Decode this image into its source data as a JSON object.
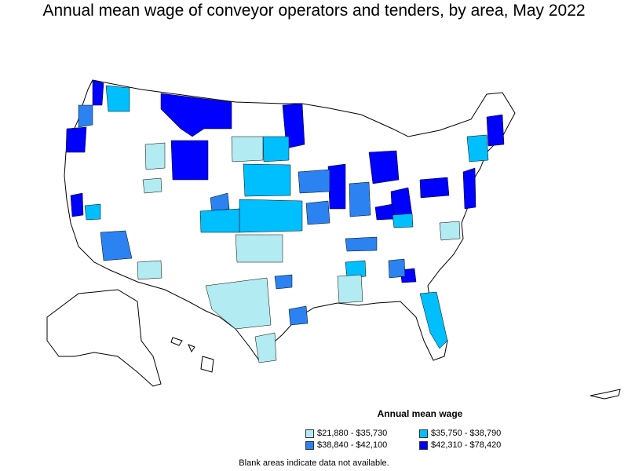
{
  "title": "Annual mean wage of conveyor operators and tenders, by area, May 2022",
  "legend": {
    "title": "Annual mean wage",
    "items": [
      {
        "label": "$21,880 - $35,730",
        "color": "#b2ebf2"
      },
      {
        "label": "$35,750 - $38,790",
        "color": "#00bfff"
      },
      {
        "label": "$38,840 - $42,100",
        "color": "#2b82f0"
      },
      {
        "label": "$42,310 - $78,420",
        "color": "#0000ff"
      }
    ]
  },
  "footnote": "Blank areas indicate data not available.",
  "colors": {
    "outline": "#000000",
    "blank": "#ffffff"
  }
}
